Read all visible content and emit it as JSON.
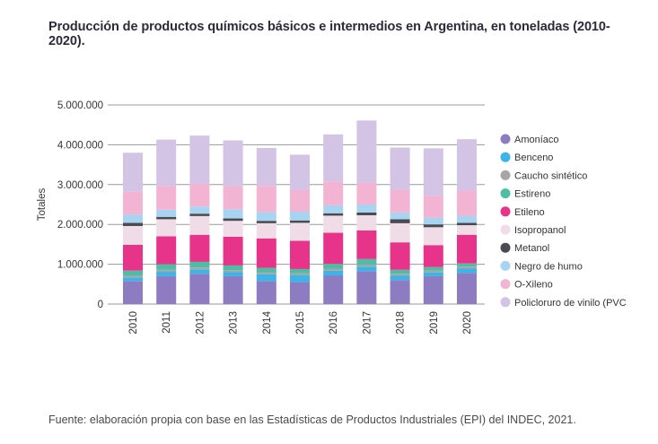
{
  "title": "Producción de productos químicos básicos e intermedios en Argentina, en toneladas (2010-2020).",
  "footer": "Fuente: elaboración propia con base en las Estadísticas de Productos Industriales (EPI) del INDEC, 2021.",
  "chart_data": {
    "type": "bar",
    "stacked": true,
    "title": "Producción de productos químicos básicos e intermedios en Argentina, en toneladas (2010-2020).",
    "xlabel": "",
    "ylabel": "Totales",
    "ylim": [
      0,
      5000000
    ],
    "yticks": [
      0,
      1000000,
      2000000,
      3000000,
      4000000,
      5000000
    ],
    "ytick_labels": [
      "0",
      "1.000.000",
      "2.000.000",
      "3.000.000",
      "4.000.000",
      "5.000.000"
    ],
    "grid": true,
    "legend_position": "right",
    "categories": [
      "2010",
      "2011",
      "2012",
      "2013",
      "2014",
      "2015",
      "2016",
      "2017",
      "2018",
      "2019",
      "2020"
    ],
    "series": [
      {
        "name": "Amoníaco",
        "color": "#8e7cc3",
        "values": [
          580000,
          700000,
          760000,
          700000,
          580000,
          550000,
          720000,
          820000,
          600000,
          700000,
          780000
        ]
      },
      {
        "name": "Benceno",
        "color": "#3cb4e8",
        "values": [
          90000,
          110000,
          110000,
          100000,
          170000,
          170000,
          120000,
          120000,
          110000,
          90000,
          110000
        ]
      },
      {
        "name": "Caucho sintético",
        "color": "#a6a6a6",
        "values": [
          50000,
          50000,
          50000,
          50000,
          50000,
          50000,
          50000,
          50000,
          50000,
          50000,
          50000
        ]
      },
      {
        "name": "Estireno",
        "color": "#4dbda3",
        "values": [
          120000,
          140000,
          140000,
          120000,
          110000,
          110000,
          120000,
          140000,
          100000,
          90000,
          80000
        ]
      },
      {
        "name": "Etileno",
        "color": "#e8338a",
        "values": [
          650000,
          700000,
          680000,
          720000,
          740000,
          710000,
          780000,
          720000,
          690000,
          550000,
          720000
        ]
      },
      {
        "name": "Isopropanol",
        "color": "#f0dce6",
        "values": [
          470000,
          430000,
          470000,
          400000,
          380000,
          450000,
          430000,
          380000,
          480000,
          450000,
          240000
        ]
      },
      {
        "name": "Metanol",
        "color": "#4a4a52",
        "values": [
          80000,
          60000,
          60000,
          60000,
          60000,
          60000,
          60000,
          70000,
          100000,
          70000,
          60000
        ]
      },
      {
        "name": "Negro de humo",
        "color": "#a8d4f2",
        "values": [
          210000,
          180000,
          180000,
          230000,
          220000,
          220000,
          200000,
          200000,
          170000,
          170000,
          180000
        ]
      },
      {
        "name": "O-Xileno",
        "color": "#f3b3d2",
        "values": [
          570000,
          600000,
          570000,
          580000,
          660000,
          550000,
          600000,
          550000,
          570000,
          550000,
          630000
        ]
      },
      {
        "name": "Policloruro de vinilo (PVC",
        "color": "#d3c3e4",
        "values": [
          980000,
          1160000,
          1210000,
          1150000,
          950000,
          880000,
          1180000,
          1560000,
          1060000,
          1190000,
          1290000
        ]
      }
    ]
  }
}
